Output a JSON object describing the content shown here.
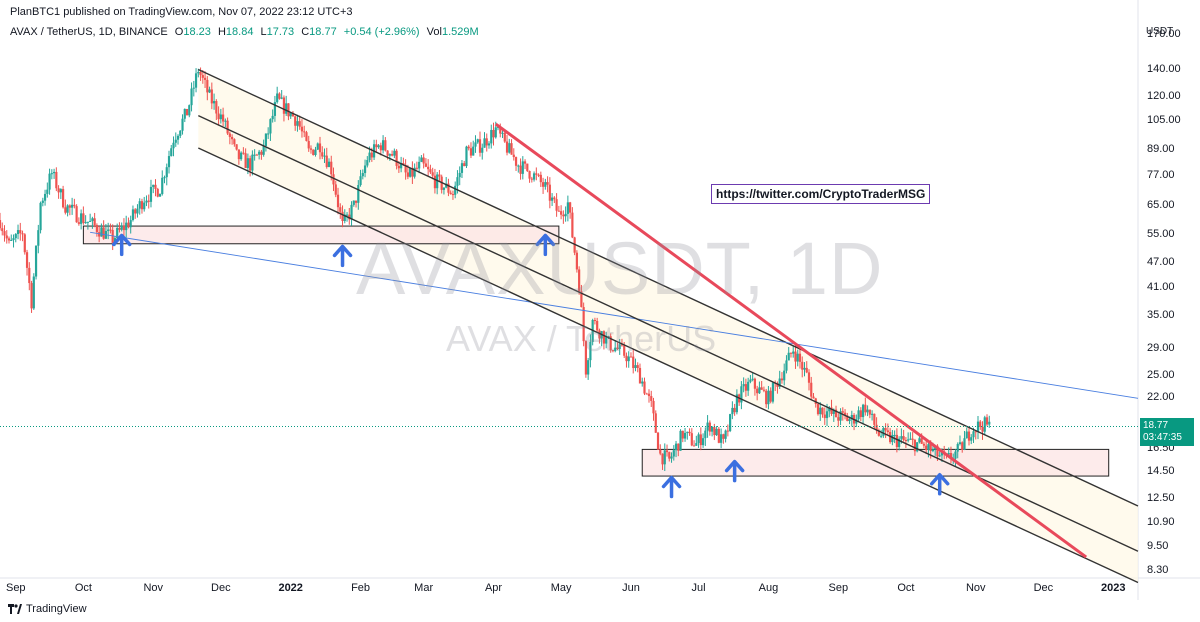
{
  "header": {
    "published": "PlanBTC1 published on TradingView.com, Nov 07, 2022 23:12 UTC+3"
  },
  "symbol_bar": {
    "symbol": "AVAX / TetherUS, 1D, BINANCE",
    "open_label": "O",
    "open": "18.23",
    "high_label": "H",
    "high": "18.84",
    "low_label": "L",
    "low": "17.73",
    "close_label": "C",
    "close": "18.77",
    "change": "+0.54 (+2.96%)",
    "vol_label": "Vol",
    "vol": "1.529M"
  },
  "axis": {
    "currency": "USDT",
    "y_ticks": [
      "170.00",
      "140.00",
      "120.00",
      "105.00",
      "89.00",
      "77.00",
      "65.00",
      "55.00",
      "47.00",
      "41.00",
      "35.00",
      "29.00",
      "25.00",
      "22.00",
      "16.50",
      "14.50",
      "12.50",
      "10.90",
      "9.50",
      "8.30"
    ],
    "x_ticks": [
      "Sep",
      "Oct",
      "Nov",
      "Dec",
      "2022",
      "Feb",
      "Mar",
      "Apr",
      "May",
      "Jun",
      "Jul",
      "Aug",
      "Sep",
      "Oct",
      "Nov",
      "Dec",
      "2023"
    ]
  },
  "price_tag": {
    "price": "18.77",
    "countdown": "03:47:35"
  },
  "watermark": {
    "line1": "AVAXUSDT, 1D",
    "line2": "AVAX / TetherUS"
  },
  "annotation": {
    "link": "https://twitter.com/CryptoTraderMSG"
  },
  "brand": {
    "name": "TradingView"
  },
  "colors": {
    "up": "#26a69a",
    "down": "#ef5350",
    "channel": "#333333",
    "trendline": "#e8495b",
    "midline": "#4a7fe0",
    "arrow": "#3b6fe0",
    "zone_fill": "#fce4e4",
    "price_tag": "#089981"
  },
  "chart_data": {
    "type": "candlestick",
    "title": "AVAX / TetherUS, 1D, BINANCE",
    "scale": "log",
    "ylim": [
      8.0,
      185.0
    ],
    "x_range": [
      "2021-08-25",
      "2023-01-12"
    ],
    "series": [
      {
        "path": [
          [
            "2021-08-25",
            60
          ],
          [
            "2021-08-29",
            52
          ],
          [
            "2021-09-04",
            56
          ],
          [
            "2021-09-08",
            38
          ],
          [
            "2021-09-12",
            66
          ],
          [
            "2021-09-17",
            78
          ],
          [
            "2021-09-23",
            65
          ],
          [
            "2021-09-28",
            62
          ],
          [
            "2021-10-06",
            58
          ],
          [
            "2021-10-14",
            54
          ],
          [
            "2021-10-22",
            60
          ],
          [
            "2021-10-28",
            68
          ],
          [
            "2021-11-04",
            72
          ],
          [
            "2021-11-10",
            95
          ],
          [
            "2021-11-16",
            110
          ],
          [
            "2021-11-21",
            140
          ],
          [
            "2021-11-26",
            120
          ],
          [
            "2021-12-02",
            105
          ],
          [
            "2021-12-08",
            86
          ],
          [
            "2021-12-14",
            82
          ],
          [
            "2021-12-20",
            90
          ],
          [
            "2021-12-26",
            118
          ],
          [
            "2021-12-30",
            112
          ],
          [
            "2022-01-04",
            105
          ],
          [
            "2022-01-09",
            88
          ],
          [
            "2022-01-14",
            92
          ],
          [
            "2022-01-19",
            80
          ],
          [
            "2022-01-24",
            58
          ],
          [
            "2022-01-29",
            65
          ],
          [
            "2022-02-04",
            85
          ],
          [
            "2022-02-10",
            92
          ],
          [
            "2022-02-16",
            86
          ],
          [
            "2022-02-22",
            76
          ],
          [
            "2022-02-28",
            82
          ],
          [
            "2022-03-06",
            75
          ],
          [
            "2022-03-14",
            70
          ],
          [
            "2022-03-20",
            88
          ],
          [
            "2022-03-27",
            92
          ],
          [
            "2022-04-02",
            100
          ],
          [
            "2022-04-06",
            92
          ],
          [
            "2022-04-12",
            82
          ],
          [
            "2022-04-18",
            78
          ],
          [
            "2022-04-24",
            72
          ],
          [
            "2022-04-30",
            62
          ],
          [
            "2022-05-04",
            66
          ],
          [
            "2022-05-09",
            42
          ],
          [
            "2022-05-12",
            26
          ],
          [
            "2022-05-15",
            34
          ],
          [
            "2022-05-22",
            30
          ],
          [
            "2022-05-30",
            28
          ],
          [
            "2022-06-05",
            25
          ],
          [
            "2022-06-10",
            21
          ],
          [
            "2022-06-14",
            16
          ],
          [
            "2022-06-18",
            15.5
          ],
          [
            "2022-06-24",
            18
          ],
          [
            "2022-06-30",
            17
          ],
          [
            "2022-07-06",
            19
          ],
          [
            "2022-07-12",
            17
          ],
          [
            "2022-07-18",
            22
          ],
          [
            "2022-07-24",
            24
          ],
          [
            "2022-08-01",
            22
          ],
          [
            "2022-08-08",
            26
          ],
          [
            "2022-08-12",
            29
          ],
          [
            "2022-08-18",
            25
          ],
          [
            "2022-08-22",
            21
          ],
          [
            "2022-08-30",
            20
          ],
          [
            "2022-09-07",
            19.5
          ],
          [
            "2022-09-13",
            21
          ],
          [
            "2022-09-19",
            18
          ],
          [
            "2022-09-25",
            17.5
          ],
          [
            "2022-10-01",
            17.2
          ],
          [
            "2022-10-07",
            17
          ],
          [
            "2022-10-13",
            16.3
          ],
          [
            "2022-10-19",
            15.5
          ],
          [
            "2022-10-25",
            16.5
          ],
          [
            "2022-10-30",
            18.5
          ],
          [
            "2022-11-04",
            19
          ],
          [
            "2022-11-07",
            18.77
          ]
        ]
      }
    ],
    "channel_lines": [
      {
        "from": [
          "2021-11-21",
          140
        ],
        "to": [
          "2023-01-12",
          12
        ]
      },
      {
        "from": [
          "2021-10-04",
          56
        ],
        "to": [
          "2023-01-12",
          22
        ]
      },
      {
        "from": [
          "2021-11-21",
          90
        ],
        "to": [
          "2023-01-12",
          7.8
        ]
      },
      {
        "from": [
          "2021-11-21",
          108
        ],
        "to": [
          "2023-01-12",
          9.3
        ]
      }
    ],
    "trendline": {
      "from": [
        "2022-04-02",
        103
      ],
      "to": [
        "2022-12-20",
        9.0
      ]
    },
    "zones": [
      {
        "x0": "2021-10-01",
        "x1": "2022-04-30",
        "y_top": 58,
        "y_bottom": 52.5
      },
      {
        "x0": "2022-06-06",
        "x1": "2022-12-30",
        "y_top": 16.5,
        "y_bottom": 14.2
      }
    ],
    "arrows": [
      {
        "date": "2021-10-18",
        "price": 50
      },
      {
        "date": "2022-01-24",
        "price": 47
      },
      {
        "date": "2022-04-24",
        "price": 50
      },
      {
        "date": "2022-06-19",
        "price": 12.8
      },
      {
        "date": "2022-07-17",
        "price": 14.0
      },
      {
        "date": "2022-10-16",
        "price": 13.0
      }
    ]
  }
}
